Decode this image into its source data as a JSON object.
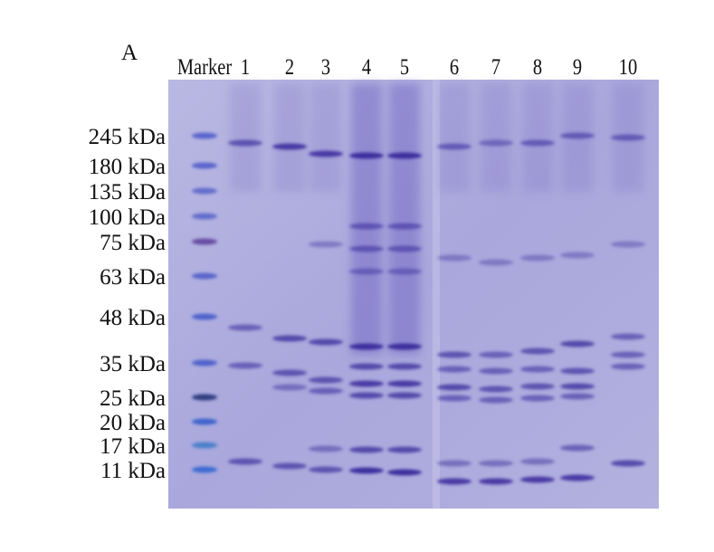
{
  "panel_label": "A",
  "lanes": [
    "Marker",
    "1",
    "2",
    "3",
    "4",
    "5",
    "6",
    "7",
    "8",
    "9",
    "10"
  ],
  "markers": [
    "245 kDa",
    "180 kDa",
    "135 kDa",
    "100 kDa",
    "75 kDa",
    "63 kDa",
    "48 kDa",
    "35 kDa",
    "25 kDa",
    "20 kDa",
    "17 kDa",
    "11 kDa"
  ]
}
